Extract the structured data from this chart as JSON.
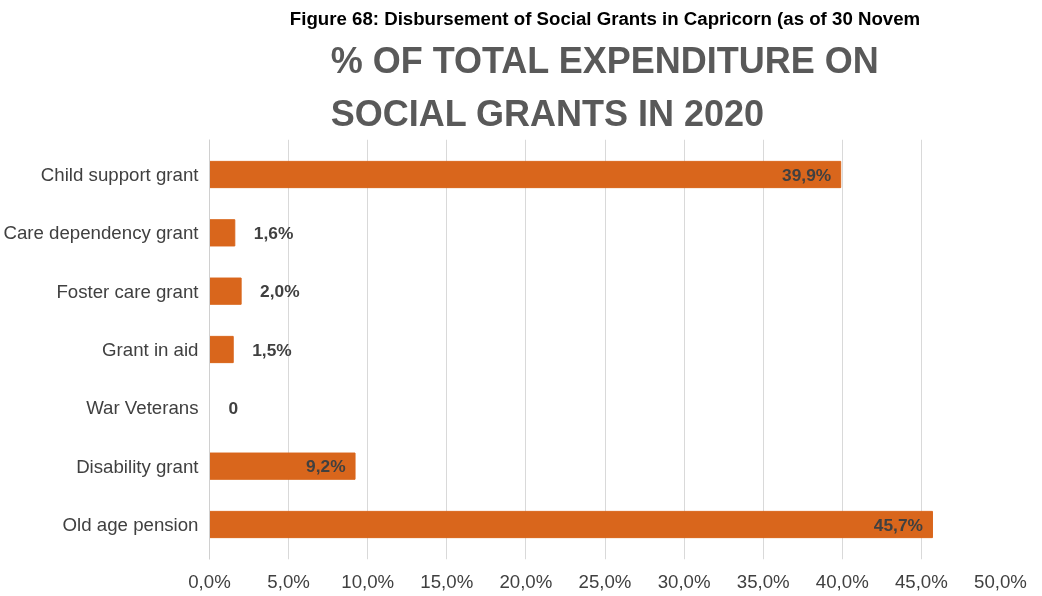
{
  "chart_data": {
    "type": "bar",
    "orientation": "horizontal",
    "title": "% OF TOTAL EXPENDITURE ON SOCIAL GRANTS IN 2020",
    "annotations": [
      "Figure 68: Disbursement of Social Grants in Capricorn (as of 30 Novem"
    ],
    "categories": [
      "Child support grant",
      "Care dependency grant",
      "Foster care grant",
      "Grant in aid",
      "War Veterans",
      "Disability grant",
      "Old age pension"
    ],
    "values": [
      39.9,
      1.6,
      2.0,
      1.5,
      0,
      9.2,
      45.7
    ],
    "value_labels": [
      "39,9%",
      "1,6%",
      "2,0%",
      "1,5%",
      "0",
      "9,2%",
      "45,7%"
    ],
    "color": "#d9661c",
    "xlim": [
      0,
      50
    ],
    "xticks": [
      {
        "value": 0,
        "label": "0,0%"
      },
      {
        "value": 5,
        "label": "5,0%"
      },
      {
        "value": 10,
        "label": "10,0%"
      },
      {
        "value": 15,
        "label": "15,0%"
      },
      {
        "value": 20,
        "label": "20,0%"
      },
      {
        "value": 25,
        "label": "25,0%"
      },
      {
        "value": 30,
        "label": "30,0%"
      },
      {
        "value": 35,
        "label": "35,0%"
      },
      {
        "value": 40,
        "label": "40,0%"
      },
      {
        "value": 45,
        "label": "45,0%"
      },
      {
        "value": 50,
        "label": "50,0%"
      }
    ],
    "grid": "x"
  }
}
